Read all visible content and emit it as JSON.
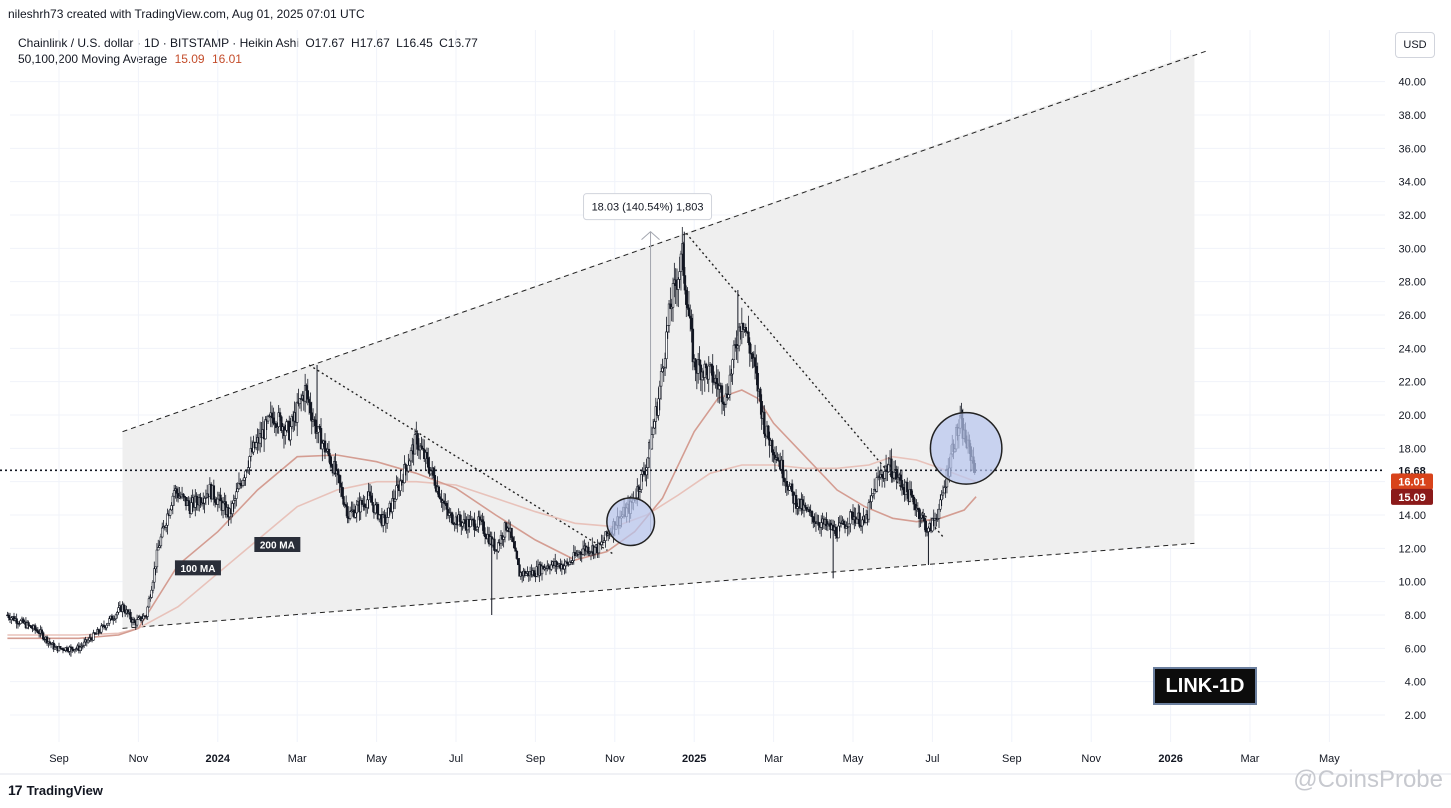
{
  "header": {
    "created_by": "nileshrh73 created with TradingView.com, Aug 01, 2025 07:01 UTC"
  },
  "legend": {
    "symbol_line": "Chainlink / U.S. dollar · 1D · BITSTAMP · Heikin Ashi",
    "open": "O17.67",
    "high": "H17.67",
    "low": "L16.45",
    "close": "C16.77",
    "ma_label": "50,100,200 Moving Average",
    "ma_value_1": "15.09",
    "ma_value_2": "16.01"
  },
  "currency_button": "USD",
  "symbol_badge": "LINK-1D",
  "footer": {
    "logo_text": "TradingView",
    "logo_mark": "17"
  },
  "watermark": "@CoinsProbe",
  "colors": {
    "candle": "#131722",
    "ma_100": "#e8c2ba",
    "ma_200": "#d49d92",
    "channel_fill": "#efefef",
    "highlight_circle": "#b8c6f0",
    "price_current": "#131722",
    "ma_100_label": "#d8431b",
    "ma_200_label": "#8b1a1a"
  },
  "chart_data": {
    "type": "candlestick",
    "title": "Chainlink / U.S. dollar · 1D · BITSTAMP · Heikin Ashi",
    "ylim": [
      0.5,
      42.5
    ],
    "y_ticks": [
      "2.00",
      "4.00",
      "6.00",
      "8.00",
      "10.00",
      "12.00",
      "14.00",
      "16.00",
      "18.00",
      "20.00",
      "22.00",
      "24.00",
      "26.00",
      "28.00",
      "30.00",
      "32.00",
      "34.00",
      "36.00",
      "38.00",
      "40.00"
    ],
    "x_ticks": [
      "Sep",
      "Nov",
      "2024",
      "Mar",
      "May",
      "Jul",
      "Sep",
      "Nov",
      "2025",
      "Mar",
      "May",
      "Jul",
      "Sep",
      "Nov",
      "2026",
      "Mar",
      "May"
    ],
    "x_tick_months": [
      0,
      2,
      4,
      6,
      8,
      10,
      12,
      14,
      16,
      18,
      20,
      22,
      24,
      26,
      28,
      30,
      32
    ],
    "x_range_months": [
      -0.6,
      33.5
    ],
    "price_path": [
      [
        -1.3,
        8.0
      ],
      [
        -0.5,
        7.0
      ],
      [
        -0.1,
        6.0
      ],
      [
        0.5,
        6.0
      ],
      [
        1.0,
        7.0
      ],
      [
        1.6,
        8.5
      ],
      [
        1.9,
        7.5
      ],
      [
        2.2,
        8.0
      ],
      [
        2.5,
        12.0
      ],
      [
        2.9,
        15.5
      ],
      [
        3.3,
        14.5
      ],
      [
        3.8,
        15.5
      ],
      [
        4.3,
        14.0
      ],
      [
        4.8,
        17.5
      ],
      [
        5.4,
        20.0
      ],
      [
        5.8,
        19.0
      ],
      [
        6.2,
        21.5
      ],
      [
        6.5,
        19.0
      ],
      [
        6.9,
        17.0
      ],
      [
        7.3,
        14.0
      ],
      [
        7.8,
        15.0
      ],
      [
        8.2,
        13.5
      ],
      [
        8.6,
        16.0
      ],
      [
        9.0,
        18.5
      ],
      [
        9.4,
        16.5
      ],
      [
        9.8,
        14.0
      ],
      [
        10.2,
        13.5
      ],
      [
        10.6,
        13.5
      ],
      [
        11.0,
        12.0
      ],
      [
        11.3,
        13.5
      ],
      [
        11.6,
        10.5
      ],
      [
        11.9,
        10.5
      ],
      [
        12.3,
        11.0
      ],
      [
        12.8,
        11.0
      ],
      [
        13.2,
        12.0
      ],
      [
        13.6,
        12.0
      ],
      [
        14.0,
        13.5
      ],
      [
        14.4,
        14.5
      ],
      [
        14.8,
        17.0
      ],
      [
        15.1,
        21.0
      ],
      [
        15.4,
        26.5
      ],
      [
        15.7,
        29.5
      ],
      [
        16.0,
        23.0
      ],
      [
        16.4,
        22.5
      ],
      [
        16.8,
        21.0
      ],
      [
        17.2,
        26.0
      ],
      [
        17.5,
        23.0
      ],
      [
        17.8,
        19.0
      ],
      [
        18.1,
        17.5
      ],
      [
        18.5,
        15.0
      ],
      [
        18.9,
        14.0
      ],
      [
        19.2,
        13.5
      ],
      [
        19.6,
        13.0
      ],
      [
        20.0,
        14.0
      ],
      [
        20.3,
        13.5
      ],
      [
        20.6,
        16.0
      ],
      [
        20.9,
        17.0
      ],
      [
        21.2,
        16.0
      ],
      [
        21.6,
        14.5
      ],
      [
        21.9,
        13.0
      ],
      [
        22.2,
        14.5
      ],
      [
        22.5,
        18.0
      ],
      [
        22.7,
        19.5
      ],
      [
        22.9,
        18.0
      ],
      [
        23.1,
        16.8
      ]
    ],
    "wicks": [
      {
        "month": 10.9,
        "low": 8.0
      },
      {
        "month": 15.75,
        "high": 31.0
      },
      {
        "month": 21.9,
        "low": 11.0
      },
      {
        "month": 6.5,
        "high": 23.0
      },
      {
        "month": 19.5,
        "low": 10.2
      },
      {
        "month": 0.3,
        "low": 5.5
      },
      {
        "month": 17.1,
        "high": 27.5
      },
      {
        "month": 22.75,
        "high": 20.3
      }
    ],
    "ma_100": [
      [
        -1.3,
        6.6
      ],
      [
        0.5,
        6.6
      ],
      [
        1.5,
        6.8
      ],
      [
        2.0,
        7.2
      ],
      [
        3.0,
        11.0
      ],
      [
        4.0,
        13.0
      ],
      [
        5.0,
        15.5
      ],
      [
        6.0,
        17.5
      ],
      [
        7.0,
        17.6
      ],
      [
        8.0,
        17.2
      ],
      [
        9.0,
        16.5
      ],
      [
        10.0,
        15.6
      ],
      [
        11.0,
        14.0
      ],
      [
        12.0,
        12.5
      ],
      [
        13.0,
        11.3
      ],
      [
        13.8,
        11.8
      ],
      [
        14.5,
        13.0
      ],
      [
        15.2,
        15.0
      ],
      [
        16.0,
        19.0
      ],
      [
        16.6,
        21.0
      ],
      [
        17.2,
        21.5
      ],
      [
        17.6,
        21.0
      ],
      [
        18.0,
        19.5
      ],
      [
        18.8,
        17.5
      ],
      [
        19.6,
        15.5
      ],
      [
        20.3,
        14.5
      ],
      [
        21.0,
        13.8
      ],
      [
        21.6,
        13.6
      ],
      [
        22.2,
        13.8
      ],
      [
        22.8,
        14.3
      ],
      [
        23.1,
        15.1
      ]
    ],
    "ma_200": [
      [
        -1.3,
        6.8
      ],
      [
        0.5,
        6.8
      ],
      [
        1.5,
        6.9
      ],
      [
        2.0,
        7.2
      ],
      [
        3.0,
        8.5
      ],
      [
        4.0,
        10.5
      ],
      [
        5.0,
        12.5
      ],
      [
        6.0,
        14.5
      ],
      [
        7.0,
        15.5
      ],
      [
        8.0,
        16.0
      ],
      [
        9.0,
        16.0
      ],
      [
        10.0,
        15.8
      ],
      [
        11.0,
        15.0
      ],
      [
        12.0,
        14.2
      ],
      [
        13.0,
        13.5
      ],
      [
        14.0,
        13.3
      ],
      [
        14.8,
        14.0
      ],
      [
        15.6,
        15.2
      ],
      [
        16.4,
        16.5
      ],
      [
        17.2,
        17.0
      ],
      [
        18.0,
        17.0
      ],
      [
        18.8,
        16.8
      ],
      [
        19.6,
        16.8
      ],
      [
        20.4,
        17.0
      ],
      [
        21.0,
        17.5
      ],
      [
        21.6,
        17.3
      ],
      [
        22.2,
        16.8
      ],
      [
        23.1,
        16.0
      ]
    ],
    "channel": {
      "upper_start": [
        1.6,
        19.0
      ],
      "upper_end": [
        28.6,
        41.7
      ],
      "lower_start": [
        1.6,
        7.2
      ],
      "lower_end": [
        28.6,
        12.3
      ],
      "fill_end_month": 28.6
    },
    "downtrend_lines": [
      {
        "from": [
          6.3,
          23.0
        ],
        "to": [
          14.0,
          11.6
        ]
      },
      {
        "from": [
          15.8,
          30.9
        ],
        "to": [
          22.3,
          12.6
        ]
      }
    ],
    "measure": {
      "month": 14.9,
      "from": 13.0,
      "to": 31.0,
      "label": "18.03 (140.54%) 1,803"
    },
    "highlight_circles": [
      {
        "month": 14.4,
        "price": 13.6,
        "r_months": 0.6
      },
      {
        "month": 22.85,
        "price": 18.0,
        "r_months": 0.9
      }
    ],
    "current_price": {
      "value": 16.68,
      "label": "16.68"
    },
    "ma_labels": [
      {
        "value": 16.01,
        "label": "16.01"
      },
      {
        "value": 15.09,
        "label": "15.09"
      }
    ],
    "annotations": [
      {
        "text": "100 MA",
        "month": 3.5,
        "price": 10.8
      },
      {
        "text": "200 MA",
        "month": 5.5,
        "price": 12.2
      }
    ]
  }
}
